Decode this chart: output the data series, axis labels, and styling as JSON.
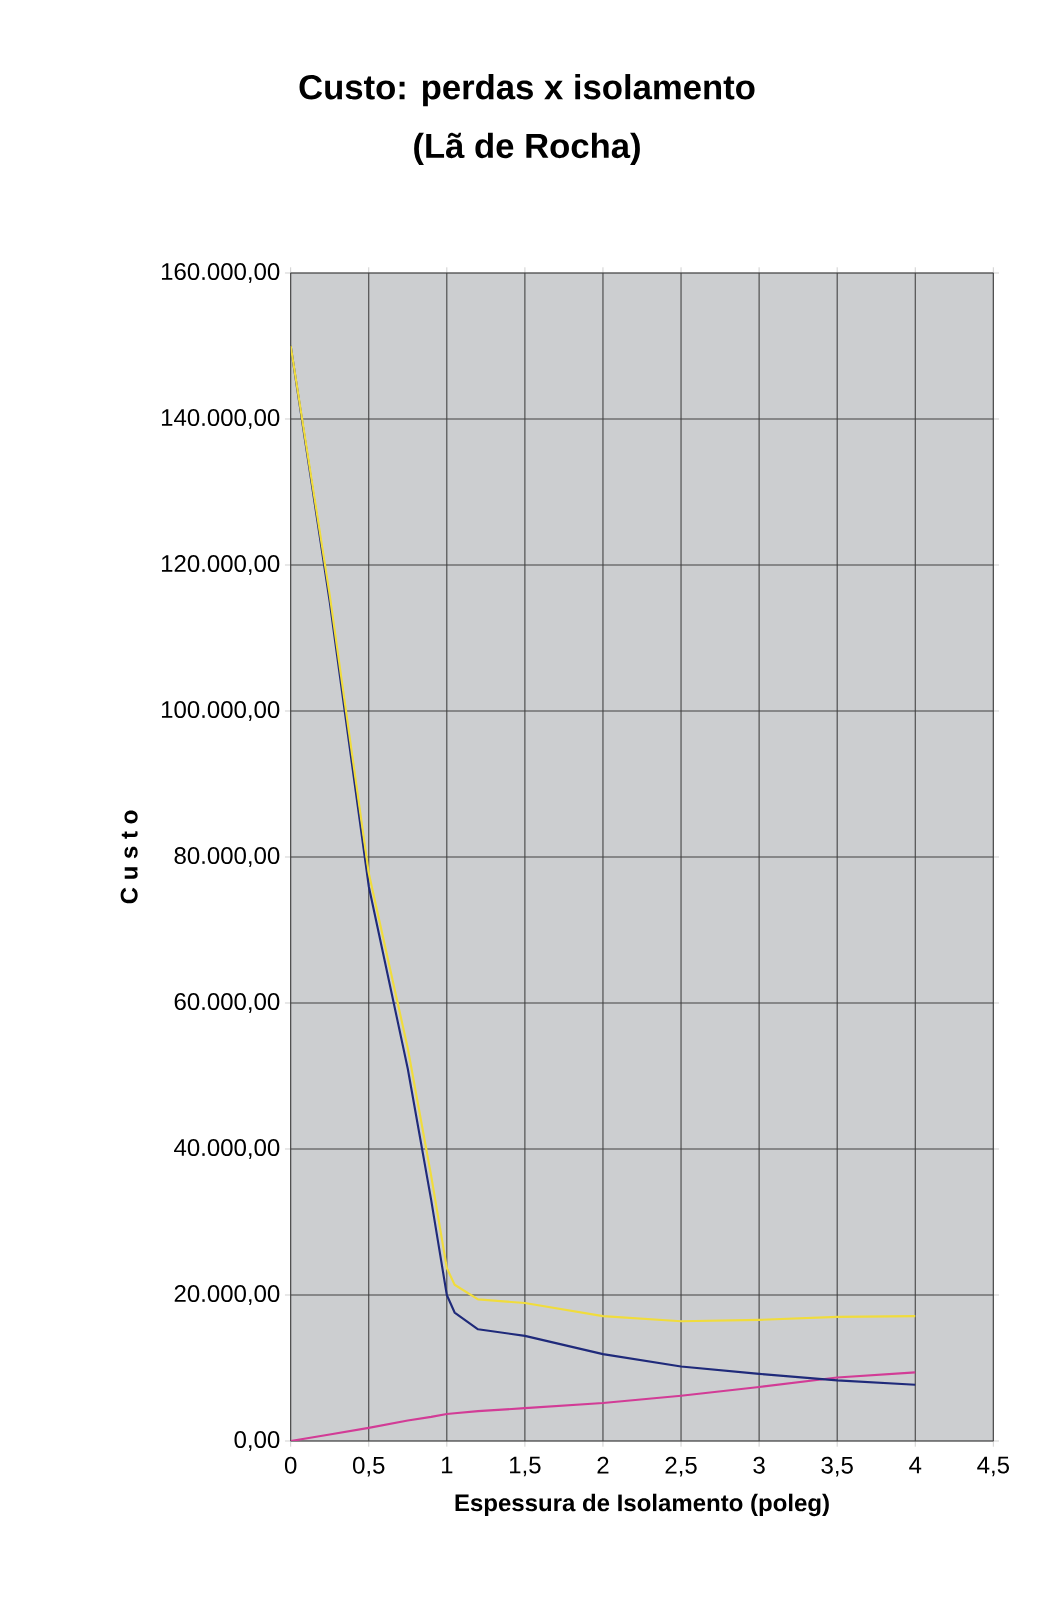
{
  "chart_data": {
    "type": "line",
    "title": "Custo: perdas x isolamento",
    "subtitle": "(Lã de Rocha)",
    "xlabel": "Espessura de Isolamento (poleg)",
    "ylabel": "C u s t o",
    "x": [
      0,
      0.25,
      0.5,
      0.75,
      0.9,
      1,
      1.05,
      1.2,
      1.5,
      2,
      2.5,
      3,
      3.5,
      4
    ],
    "series": [
      {
        "color": "#f0dc3c",
        "values": [
          150000,
          115900,
          77800,
          53800,
          36300,
          23700,
          21400,
          19400,
          18900,
          17100,
          16400,
          16600,
          17000,
          17100
        ]
      },
      {
        "color": "#1f2a7a",
        "values": [
          150000,
          115000,
          76000,
          51000,
          33000,
          20000,
          17600,
          15300,
          14400,
          11900,
          10200,
          9200,
          8300,
          7700
        ]
      },
      {
        "color": "#d23c96",
        "values": [
          0,
          900,
          1800,
          2800,
          3300,
          3700,
          3800,
          4100,
          4500,
          5200,
          6200,
          7400,
          8700,
          9400
        ]
      }
    ],
    "xlim": [
      0,
      4.5
    ],
    "ylim": [
      0,
      160000
    ],
    "xticks": [
      0,
      {
        "value": 0.5,
        "label": "0,5"
      },
      1,
      {
        "value": 1.5,
        "label": "1,5"
      },
      2,
      {
        "value": 2.5,
        "label": "2,5"
      },
      3,
      {
        "value": 3.5,
        "label": "3,5"
      },
      4,
      {
        "value": 4.5,
        "label": "4,5"
      }
    ],
    "yticks": [
      {
        "value": 0,
        "label": "0,00"
      },
      {
        "value": 20000,
        "label": "20.000,00"
      },
      {
        "value": 40000,
        "label": "40.000,00"
      },
      {
        "value": 60000,
        "label": "60.000,00"
      },
      {
        "value": 80000,
        "label": "80.000,00"
      },
      {
        "value": 100000,
        "label": "100.000,00"
      },
      {
        "value": 120000,
        "label": "120.000,00"
      },
      {
        "value": 140000,
        "label": "140.000,00"
      },
      {
        "value": 160000,
        "label": "160.000,00"
      }
    ],
    "grid": true,
    "marker": "none",
    "line_style": "solid"
  }
}
